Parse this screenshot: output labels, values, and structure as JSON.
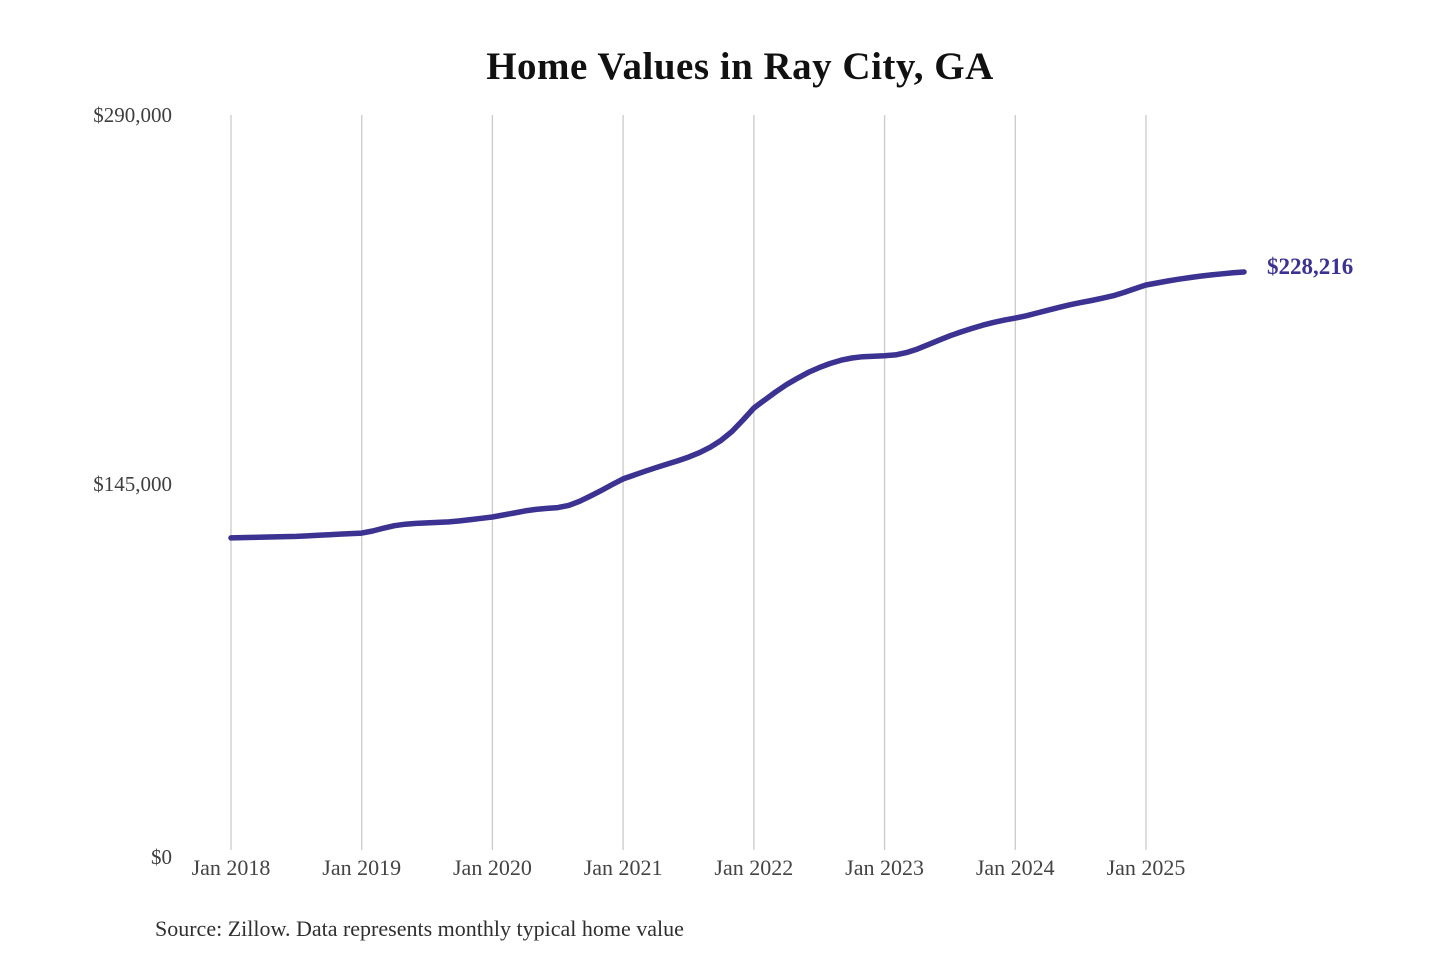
{
  "page": {
    "background_color": "#ffffff"
  },
  "chart_data": {
    "type": "line",
    "title": "Home Values in Ray City, GA",
    "source_note": "Source: Zillow. Data represents monthly typical home value",
    "series_name": "Monthly typical home value",
    "line_color": "#3b3292",
    "grid_color": "#cbcbcb",
    "tick_label_color": "#444444",
    "end_label": "$228,216",
    "end_value": 228216,
    "x_start": "Jan 2018",
    "x_end": "Oct 2025",
    "grid": "vertical-only",
    "legend": "none",
    "ylim": [
      0,
      290000
    ],
    "y_axis_ticks": [
      {
        "label": "$290,000",
        "value": 290000
      },
      {
        "label": "$145,000",
        "value": 145000
      },
      {
        "label": "$0",
        "value": 0
      }
    ],
    "x_axis_ticks": [
      {
        "label": "Jan 2018",
        "month_index": 0
      },
      {
        "label": "Jan 2019",
        "month_index": 12
      },
      {
        "label": "Jan 2020",
        "month_index": 24
      },
      {
        "label": "Jan 2021",
        "month_index": 36
      },
      {
        "label": "Jan 2022",
        "month_index": 48
      },
      {
        "label": "Jan 2023",
        "month_index": 60
      },
      {
        "label": "Jan 2024",
        "month_index": 72
      },
      {
        "label": "Jan 2025",
        "month_index": 84
      }
    ],
    "monthly_values": [
      123600,
      123700,
      123800,
      123900,
      124000,
      124100,
      124200,
      124400,
      124600,
      124800,
      125100,
      125300,
      125500,
      126300,
      127400,
      128400,
      129000,
      129300,
      129500,
      129700,
      129900,
      130300,
      130800,
      131300,
      131800,
      132600,
      133400,
      134200,
      134800,
      135200,
      135500,
      136400,
      138000,
      140100,
      142300,
      144600,
      146800,
      148300,
      149800,
      151200,
      152600,
      153900,
      155400,
      157100,
      159300,
      162000,
      165500,
      170000,
      174700,
      177900,
      181000,
      183900,
      186400,
      188700,
      190600,
      192200,
      193500,
      194400,
      194900,
      195100,
      195300,
      195600,
      196500,
      197900,
      199600,
      201400,
      203100,
      204600,
      206000,
      207300,
      208400,
      209300,
      210100,
      211000,
      212100,
      213200,
      214300,
      215300,
      216200,
      217000,
      217900,
      218900,
      220200,
      221700,
      223100,
      223900,
      224700,
      225400,
      226000,
      226600,
      227100,
      227500,
      227900,
      228216
    ]
  }
}
